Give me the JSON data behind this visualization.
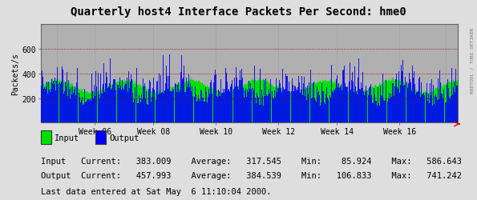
{
  "title": "Quarterly host4 Interface Packets Per Second: hme0",
  "ylabel": "Packets/s",
  "background_color": "#dedede",
  "plot_bg_color": "#b0b0b0",
  "input_color": "#00e000",
  "output_color": "#0000ff",
  "hrule_color": "#990000",
  "grid_color": "#aaaaaa",
  "x_tick_labels": [
    "Week 06",
    "Week 08",
    "Week 10",
    "Week 12",
    "Week 14",
    "Week 16"
  ],
  "x_tick_pos": [
    0.13,
    0.27,
    0.42,
    0.57,
    0.71,
    0.86
  ],
  "x_vline_pos": [
    0.04,
    0.13,
    0.27,
    0.42,
    0.57,
    0.71,
    0.86,
    0.97
  ],
  "ylim": [
    0,
    800
  ],
  "yticks": [
    200,
    400,
    600
  ],
  "num_points": 500,
  "input_avg": 317.545,
  "input_min": 85.924,
  "input_max": 586.643,
  "output_avg": 384.539,
  "output_min": 106.833,
  "output_max": 741.242,
  "stats_line1": "Input   Current:   383.009    Average:   317.545    Min:    85.924    Max:   586.643",
  "stats_line2": "Output  Current:   457.993    Average:   384.539    Min:   106.833    Max:   741.242",
  "last_data": "Last data entered at Sat May  6 11:10:04 2000.",
  "right_label": "RRDTOOL / TOBI OETIKER",
  "title_fontsize": 10,
  "axis_fontsize": 7,
  "stats_fontsize": 7.5
}
